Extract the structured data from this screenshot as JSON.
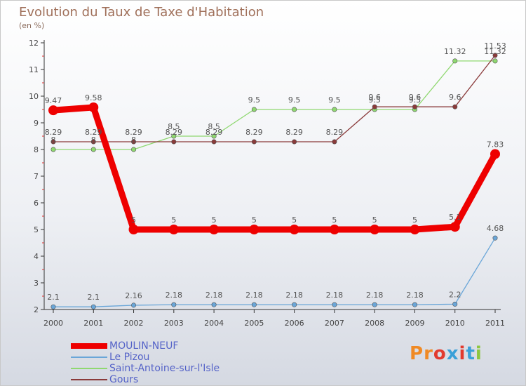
{
  "header": {
    "title": "Evolution du Taux de Taxe d'Habitation",
    "subtitle": "(en %)"
  },
  "logo": {
    "text": "Proxiti",
    "colors": [
      "#f08a24",
      "#f08a24",
      "#e23a2e",
      "#3aa0d8",
      "#e23a2e",
      "#3aa0d8",
      "#8cc63f"
    ]
  },
  "chart_data": {
    "type": "line",
    "title": "Evolution du Taux de Taxe d'Habitation",
    "subtitle": "(en %)",
    "xlabel": "",
    "ylabel": "",
    "x": [
      "2000",
      "2001",
      "2002",
      "2003",
      "2004",
      "2005",
      "2006",
      "2007",
      "2008",
      "2009",
      "2010",
      "2011"
    ],
    "ylim": [
      2,
      12
    ],
    "yticks": [
      2,
      3,
      4,
      5,
      6,
      7,
      8,
      9,
      10,
      11,
      12
    ],
    "grid": false,
    "legend_position": "bottom-left",
    "series": [
      {
        "name": "MOULIN-NEUF",
        "color": "#ee0000",
        "thick": true,
        "values": [
          9.47,
          9.58,
          5,
          5,
          5,
          5,
          5,
          5,
          5,
          5,
          5.1,
          7.83
        ],
        "labels": [
          "9.47",
          "9.58",
          "5",
          "5",
          "5",
          "5",
          "5",
          "5",
          "5",
          "5",
          "5.1",
          "7.83"
        ]
      },
      {
        "name": "Le Pizou",
        "color": "#6aa6d8",
        "thick": false,
        "values": [
          2.1,
          2.1,
          2.16,
          2.18,
          2.18,
          2.18,
          2.18,
          2.18,
          2.18,
          2.18,
          2.2,
          4.68
        ],
        "labels": [
          "2.1",
          "2.1",
          "2.16",
          "2.18",
          "2.18",
          "2.18",
          "2.18",
          "2.18",
          "2.18",
          "2.18",
          "2.2",
          "4.68"
        ]
      },
      {
        "name": "Saint-Antoine-sur-l'Isle",
        "color": "#8fd870",
        "thick": false,
        "values": [
          8,
          8,
          8,
          8.5,
          8.5,
          9.5,
          9.5,
          9.5,
          9.5,
          9.5,
          11.32,
          11.32
        ],
        "labels": [
          "8",
          "8",
          "8",
          "8.5",
          "8.5",
          "9.5",
          "9.5",
          "9.5",
          "9.5",
          "9.5",
          "11.32",
          "11.32"
        ]
      },
      {
        "name": "Gours",
        "color": "#8a3a3a",
        "thick": false,
        "values": [
          8.29,
          8.29,
          8.29,
          8.29,
          8.29,
          8.29,
          8.29,
          8.29,
          9.6,
          9.6,
          9.6,
          11.53
        ],
        "labels": [
          "8.29",
          "8.29",
          "8.29",
          "8.29",
          "8.29",
          "8.29",
          "8.29",
          "8.29",
          "9.6",
          "9.6",
          "9.6",
          "11.53"
        ]
      }
    ]
  }
}
